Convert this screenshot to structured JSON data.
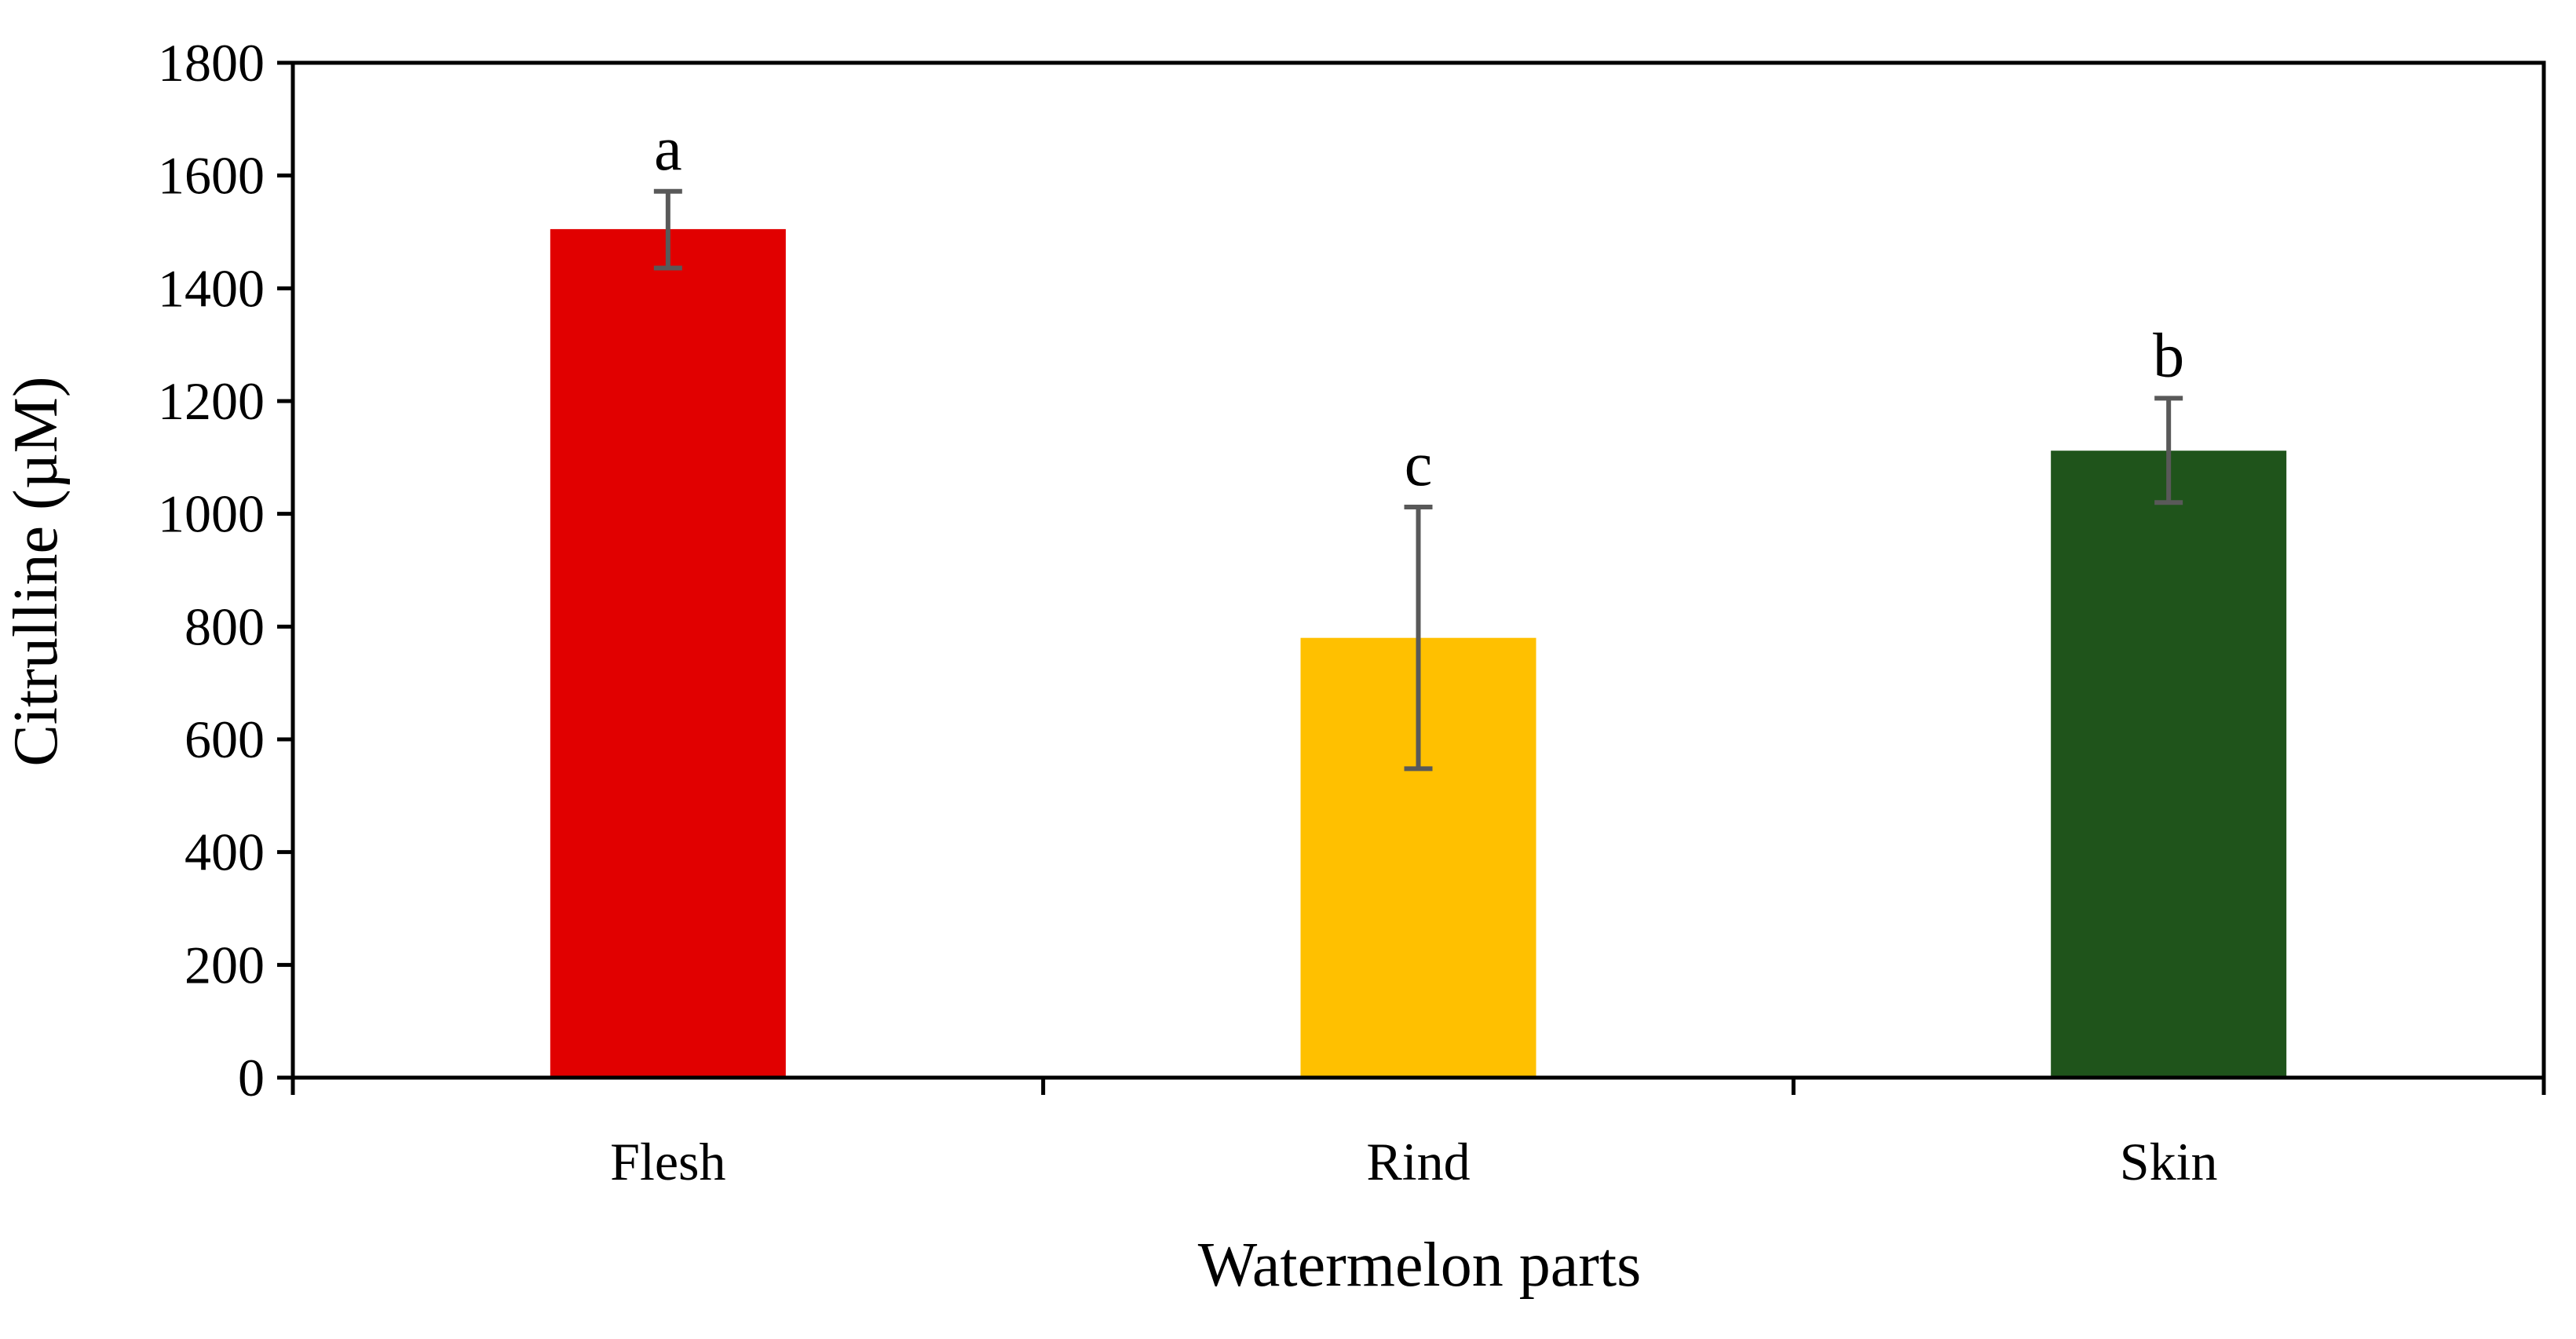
{
  "chart_data": {
    "type": "bar",
    "title": "",
    "xlabel": "Watermelon parts",
    "ylabel": "Citrulline (µM)",
    "ylim": [
      0,
      1800
    ],
    "yticks": [
      0,
      200,
      400,
      600,
      800,
      1000,
      1200,
      1400,
      1600,
      1800
    ],
    "ytick_labels": [
      "0",
      "200",
      "400",
      "600",
      "800",
      "1000",
      "1200",
      "1400",
      "1600",
      "1800"
    ],
    "categories": [
      "Flesh",
      "Rind",
      "Skin"
    ],
    "values": [
      1505,
      780,
      1112
    ],
    "error_low": [
      1436,
      548,
      1020
    ],
    "error_high": [
      1572,
      1012,
      1205
    ],
    "significance_labels": [
      "a",
      "c",
      "b"
    ],
    "colors": [
      "#e10000",
      "#ffc000",
      "#1f541b"
    ],
    "error_bar_color": "#595959",
    "grid": false,
    "legend": "none"
  }
}
